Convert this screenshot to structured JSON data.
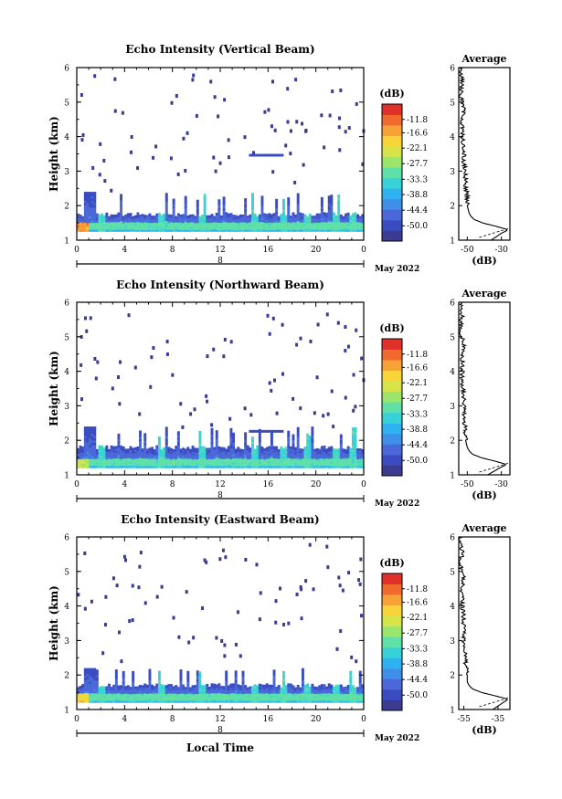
{
  "figure": {
    "xlabel": "Local Time",
    "date_label": "May 2022",
    "cb_unit": "(dB)",
    "avg_title": "Average",
    "avg_xlabel": "(dB)"
  },
  "chart_data": [
    {
      "type": "heatmap",
      "title": "Echo Intensity (Vertical Beam)",
      "ylabel": "Height (km)",
      "x_ticks": [
        "0",
        "4",
        "8",
        "12",
        "16",
        "20",
        "0"
      ],
      "xlim": [
        0,
        24
      ],
      "y_ticks": [
        "1",
        "2",
        "3",
        "4",
        "5",
        "6"
      ],
      "ylim": [
        1,
        6
      ],
      "day": "8",
      "colorbar": {
        "label": "(dB)",
        "ticks": [
          "-11.8",
          "-16.6",
          "-22.1",
          "-27.7",
          "-33.3",
          "-38.8",
          "-44.4",
          "-50.0"
        ],
        "range": [
          -55.5,
          -6.3
        ]
      },
      "echo_layer": {
        "base_km": 1.25,
        "top_km": 1.75,
        "top_km_max": 2.4,
        "core_km": [
          1.3,
          1.5
        ],
        "max_db": -11.8
      },
      "average_profile": {
        "title": "Average",
        "xlabel": "(dB)",
        "x_ticks": [
          "-50",
          "-30"
        ],
        "xlim": [
          -55,
          -25
        ],
        "ylim": [
          1,
          6
        ],
        "height_km": [
          1.0,
          1.2,
          1.3,
          1.4,
          1.5,
          1.6,
          1.7,
          1.8,
          2.0,
          2.3,
          2.6,
          3.0,
          3.3,
          3.6,
          4.0,
          4.4,
          4.8,
          5.2,
          5.6,
          6.0
        ],
        "db": [
          -36,
          -30,
          -26,
          -33,
          -41,
          -46,
          -48,
          -49,
          -50,
          -50,
          -51,
          -51,
          -52,
          -52,
          -53,
          -53,
          -52,
          -54,
          -53,
          -54
        ]
      }
    },
    {
      "type": "heatmap",
      "title": "Echo Intensity (Northward Beam)",
      "ylabel": "Height (km)",
      "x_ticks": [
        "0",
        "4",
        "8",
        "12",
        "16",
        "20",
        "0"
      ],
      "xlim": [
        0,
        24
      ],
      "y_ticks": [
        "1",
        "2",
        "3",
        "4",
        "5",
        "6"
      ],
      "ylim": [
        1,
        6
      ],
      "day": "8",
      "colorbar": {
        "label": "(dB)",
        "ticks": [
          "-11.8",
          "-16.6",
          "-22.1",
          "-27.7",
          "-33.3",
          "-38.8",
          "-44.4",
          "-50.0"
        ],
        "range": [
          -55.5,
          -6.3
        ]
      },
      "echo_layer": {
        "base_km": 1.2,
        "top_km": 1.8,
        "top_km_max": 2.4,
        "core_km": [
          1.25,
          1.45
        ],
        "max_db": -22.1
      },
      "average_profile": {
        "title": "Average",
        "xlabel": "(dB)",
        "x_ticks": [
          "-50",
          "-30"
        ],
        "xlim": [
          -55,
          -25
        ],
        "ylim": [
          1,
          6
        ],
        "height_km": [
          1.0,
          1.2,
          1.3,
          1.4,
          1.5,
          1.6,
          1.7,
          1.8,
          2.0,
          2.3,
          2.6,
          3.0,
          3.3,
          3.6,
          4.0,
          4.4,
          4.8,
          5.2,
          5.6,
          6.0
        ],
        "db": [
          -38,
          -31,
          -27,
          -34,
          -42,
          -47,
          -49,
          -50,
          -51,
          -51,
          -52,
          -52,
          -52,
          -53,
          -53,
          -53,
          -52,
          -54,
          -53,
          -54
        ]
      }
    },
    {
      "type": "heatmap",
      "title": "Echo Intensity (Eastward Beam)",
      "ylabel": "Height (km)",
      "x_ticks": [
        "0",
        "4",
        "8",
        "12",
        "16",
        "20",
        "0"
      ],
      "xlim": [
        0,
        24
      ],
      "y_ticks": [
        "1",
        "2",
        "3",
        "4",
        "5",
        "6"
      ],
      "ylim": [
        1,
        6
      ],
      "day": "8",
      "colorbar": {
        "label": "(dB)",
        "ticks": [
          "-11.8",
          "-16.6",
          "-22.1",
          "-27.7",
          "-33.3",
          "-38.8",
          "-44.4",
          "-50.0"
        ],
        "range": [
          -55.5,
          -6.3
        ]
      },
      "echo_layer": {
        "base_km": 1.2,
        "top_km": 1.7,
        "top_km_max": 2.2,
        "core_km": [
          1.25,
          1.45
        ],
        "max_db": -16.6
      },
      "average_profile": {
        "title": "Average",
        "xlabel": "(dB)",
        "x_ticks": [
          "-55",
          "-35"
        ],
        "xlim": [
          -58,
          -28
        ],
        "ylim": [
          1,
          6
        ],
        "height_km": [
          1.0,
          1.2,
          1.3,
          1.4,
          1.5,
          1.6,
          1.7,
          1.8,
          2.0,
          2.3,
          2.6,
          3.0,
          3.3,
          3.6,
          4.0,
          4.4,
          4.8,
          5.2,
          5.6,
          6.0
        ],
        "db": [
          -38,
          -32,
          -29,
          -37,
          -45,
          -50,
          -52,
          -53,
          -53,
          -54,
          -54,
          -55,
          -55,
          -55,
          -56,
          -56,
          -55,
          -57,
          -56,
          -57
        ]
      }
    }
  ]
}
